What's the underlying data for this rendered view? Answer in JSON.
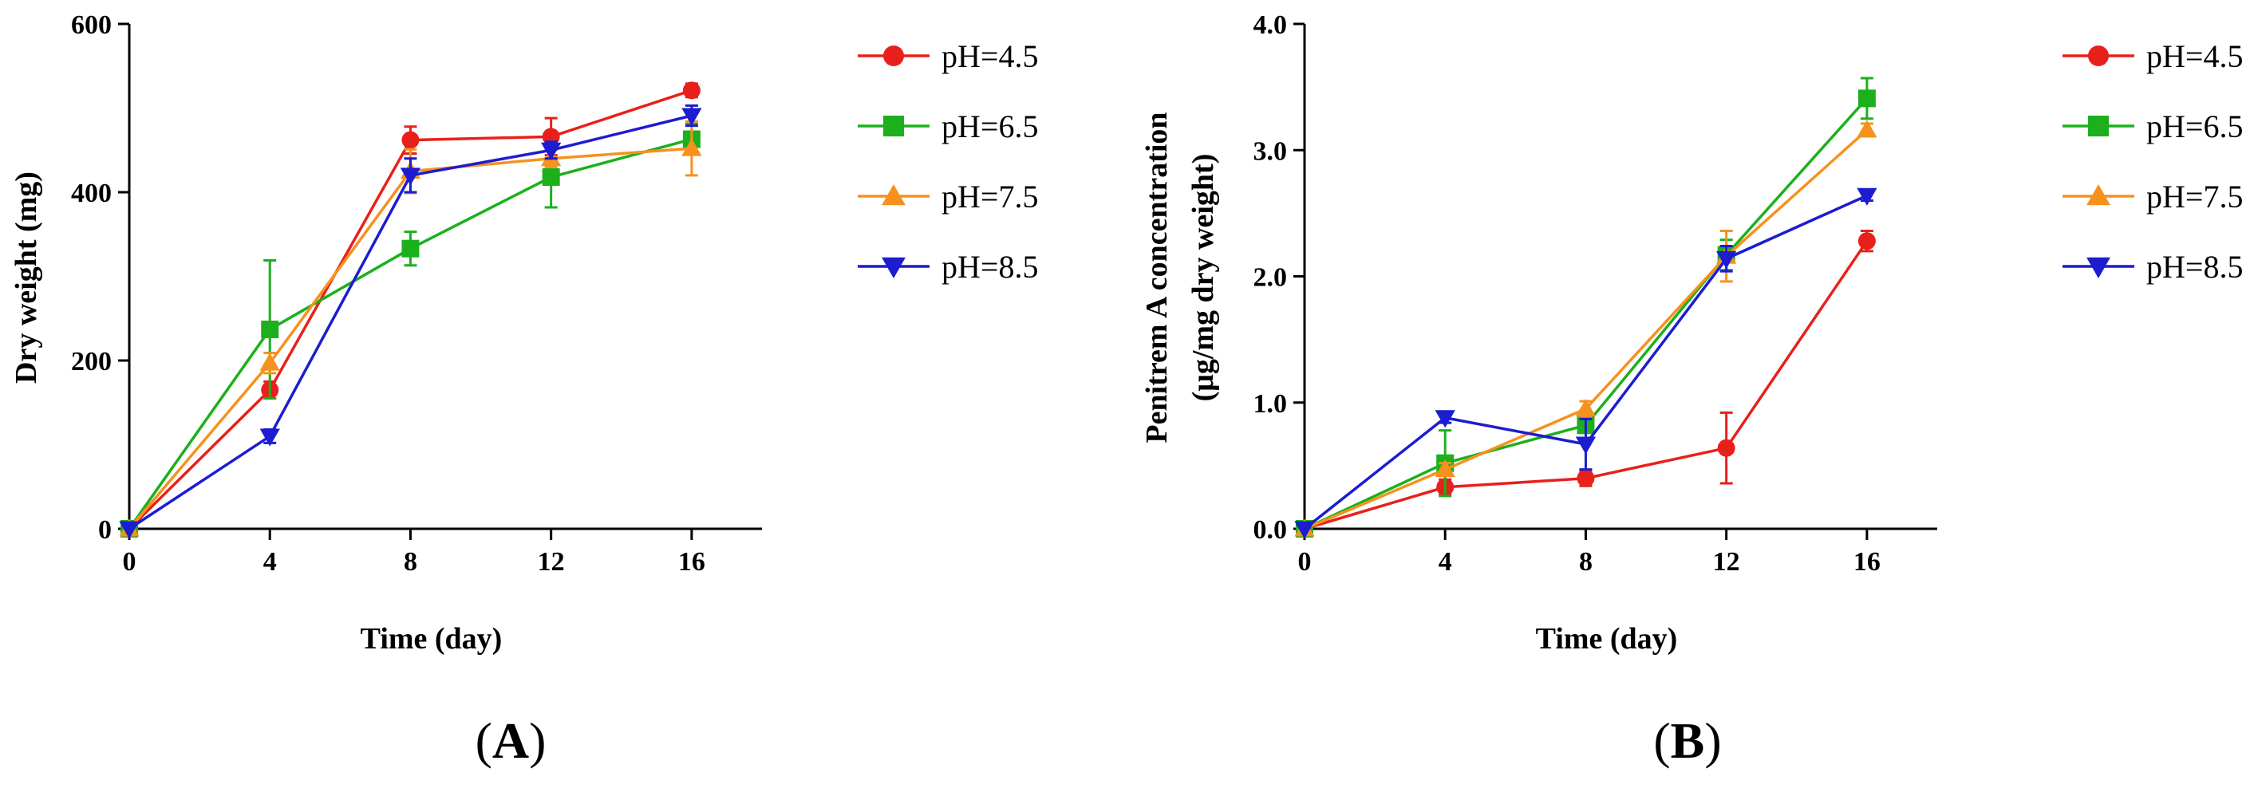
{
  "chart_data": [
    {
      "type": "line",
      "panel_label": "A",
      "title": "",
      "xlabel": "Time (day)",
      "ylabel": "Dry weight (mg)",
      "x": [
        0,
        4,
        8,
        12,
        16
      ],
      "xlim": [
        0,
        18
      ],
      "ylim": [
        0,
        600
      ],
      "xticks": [
        0,
        4,
        8,
        12,
        16
      ],
      "yticks": [
        0,
        200,
        400,
        600
      ],
      "ytick_labels": [
        "0",
        "200",
        "400",
        "600"
      ],
      "legend_position": "right",
      "series": [
        {
          "name": "pH=4.5",
          "color": "#e8201b",
          "marker": "circle",
          "values": [
            0,
            165,
            462,
            466,
            521
          ],
          "errors": [
            0,
            10,
            16,
            22,
            8
          ]
        },
        {
          "name": "pH=6.5",
          "color": "#1cb01c",
          "marker": "square",
          "values": [
            0,
            237,
            333,
            418,
            463
          ],
          "errors": [
            0,
            82,
            20,
            36,
            18
          ]
        },
        {
          "name": "pH=7.5",
          "color": "#f5921e",
          "marker": "triangle-up",
          "values": [
            0,
            197,
            425,
            440,
            452
          ],
          "errors": [
            0,
            12,
            26,
            10,
            32
          ]
        },
        {
          "name": "pH=8.5",
          "color": "#1c1cd0",
          "marker": "triangle-down",
          "values": [
            0,
            110,
            420,
            450,
            491
          ],
          "errors": [
            0,
            8,
            20,
            10,
            12
          ]
        }
      ]
    },
    {
      "type": "line",
      "panel_label": "B",
      "title": "",
      "xlabel": "Time (day)",
      "ylabel": "Penitrem A concentration",
      "ylabel2": "(μg/mg dry weight)",
      "x": [
        0,
        4,
        8,
        12,
        16
      ],
      "xlim": [
        0,
        18
      ],
      "ylim": [
        0,
        4
      ],
      "xticks": [
        0,
        4,
        8,
        12,
        16
      ],
      "yticks": [
        0,
        1,
        2,
        3,
        4
      ],
      "ytick_labels": [
        "0.0",
        "1.0",
        "2.0",
        "3.0",
        "4.0"
      ],
      "legend_position": "right",
      "series": [
        {
          "name": "pH=4.5",
          "color": "#e8201b",
          "marker": "circle",
          "values": [
            0,
            0.33,
            0.4,
            0.64,
            2.28
          ],
          "errors": [
            0,
            0.06,
            0.06,
            0.28,
            0.08
          ]
        },
        {
          "name": "pH=6.5",
          "color": "#1cb01c",
          "marker": "square",
          "values": [
            0,
            0.52,
            0.82,
            2.17,
            3.41
          ],
          "errors": [
            0,
            0.26,
            0.06,
            0.12,
            0.16
          ]
        },
        {
          "name": "pH=7.5",
          "color": "#f5921e",
          "marker": "triangle-up",
          "values": [
            0,
            0.47,
            0.95,
            2.16,
            3.16
          ],
          "errors": [
            0,
            0.05,
            0.06,
            0.2,
            0.05
          ]
        },
        {
          "name": "pH=8.5",
          "color": "#1c1cd0",
          "marker": "triangle-down",
          "values": [
            0,
            0.88,
            0.67,
            2.14,
            2.64
          ],
          "errors": [
            0,
            0.04,
            0.2,
            0.1,
            0.04
          ]
        }
      ]
    }
  ]
}
